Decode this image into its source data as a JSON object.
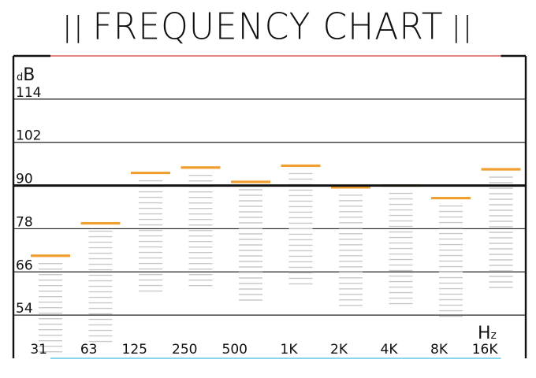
{
  "title": "FREQUENCY CHART",
  "title_bars": "||",
  "chart_data": {
    "type": "bar",
    "title": "FREQUENCY CHART",
    "xlabel": "Hz",
    "ylabel": "dB",
    "categories": [
      "31",
      "63",
      "125",
      "250",
      "500",
      "1K",
      "2K",
      "4K",
      "8K",
      "16K"
    ],
    "values": [
      70.5,
      79.5,
      93.5,
      95,
      91,
      95.5,
      89.5,
      90,
      86.5,
      94.5
    ],
    "ylim": [
      42,
      126
    ],
    "yticks": [
      114,
      102,
      90,
      78,
      66,
      54
    ],
    "reference_line": 90,
    "grid": true,
    "colors": {
      "level_marker": "#f0a030",
      "upper_lines": "#f07070",
      "lower_lines": "#60c8e8",
      "dash_ticks": "#c8c8c8",
      "grid": "#222222"
    }
  }
}
